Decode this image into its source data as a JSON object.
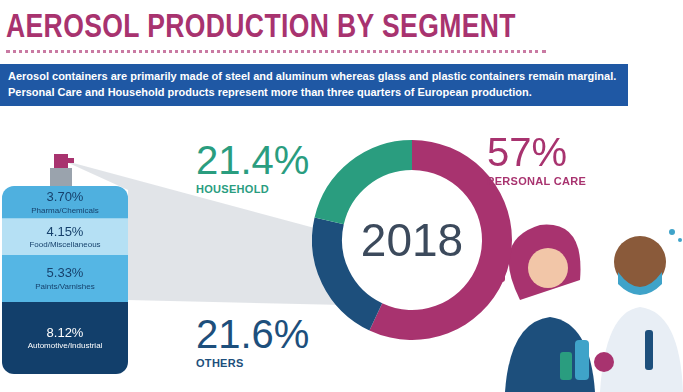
{
  "chart_data": [
    {
      "type": "doughnut",
      "title": "AEROSOL PRODUCTION BY SEGMENT",
      "subtitle": "Aerosol containers are primarily made of steel and aluminum whereas glass and plastic containers remain marginal. Personal Care and Household products represent more than three quarters of European production.",
      "categories": [
        "PERSONAL CARE",
        "OTHERS",
        "HOUSEHOLD"
      ],
      "values": [
        57,
        21.6,
        21.4
      ],
      "value_labels": [
        "57%",
        "21.6%",
        "21.4%"
      ],
      "colors": [
        "#a8336f",
        "#1d4f7c",
        "#2a9d7f"
      ],
      "data_labels": true,
      "annotations": [
        "2018"
      ]
    },
    {
      "type": "bar",
      "stacked": true,
      "categories": [
        null
      ],
      "series": [
        {
          "name": "Automotive/Industrial",
          "color": "#123f6b",
          "values": [
            8.12
          ],
          "value_labels": [
            "8.12%"
          ]
        },
        {
          "name": "Paints/Varnishes",
          "color": "#55b6e4",
          "values": [
            5.33
          ],
          "value_labels": [
            "5.33%"
          ]
        },
        {
          "name": "Food/Miscellaneous",
          "color": "#b5e0f4",
          "values": [
            4.15
          ],
          "value_labels": [
            "4.15%"
          ]
        },
        {
          "name": "Pharma/Chemicals",
          "color": "#4fb0df",
          "values": [
            3.7
          ],
          "value_labels": [
            "3.70%"
          ]
        }
      ],
      "ylim": [
        0,
        21.3
      ],
      "tick_labels": false,
      "grid": false,
      "data_labels": true
    }
  ]
}
